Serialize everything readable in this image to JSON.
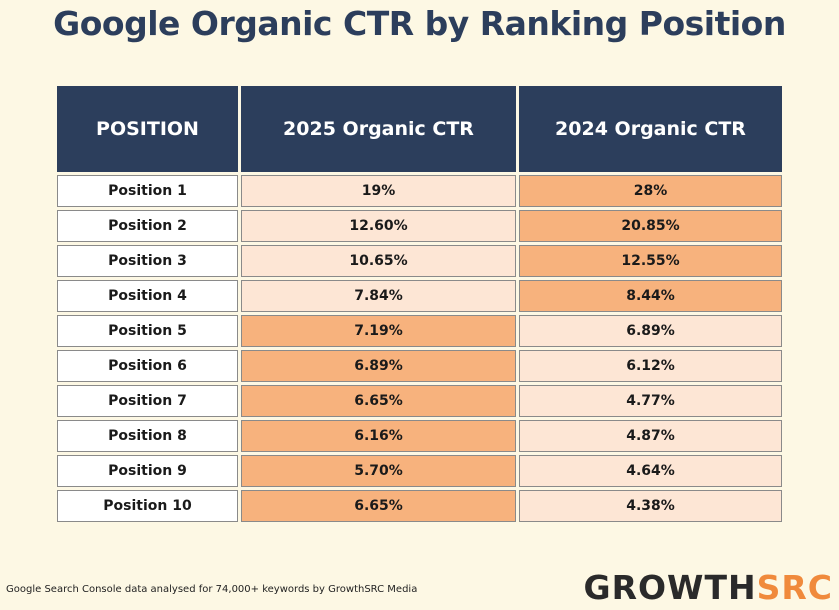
{
  "chart_data": {
    "type": "table",
    "title": "Google Organic CTR by Ranking Position",
    "columns": [
      "POSITION",
      "2025 Organic CTR",
      "2024 Organic CTR"
    ],
    "rows": [
      [
        "Position 1",
        "19%",
        "28%"
      ],
      [
        "Position 2",
        "12.60%",
        "20.85%"
      ],
      [
        "Position 3",
        "10.65%",
        "12.55%"
      ],
      [
        "Position 4",
        "7.84%",
        "8.44%"
      ],
      [
        "Position 5",
        "7.19%",
        "6.89%"
      ],
      [
        "Position 6",
        "6.89%",
        "6.12%"
      ],
      [
        "Position 7",
        "6.65%",
        "4.77%"
      ],
      [
        "Position 8",
        "6.16%",
        "4.87%"
      ],
      [
        "Position 9",
        "5.70%",
        "4.64%"
      ],
      [
        "Position 10",
        "6.65%",
        "4.38%"
      ]
    ],
    "highlight": [
      [
        false,
        false,
        true
      ],
      [
        false,
        false,
        true
      ],
      [
        false,
        false,
        true
      ],
      [
        false,
        false,
        true
      ],
      [
        false,
        true,
        false
      ],
      [
        false,
        true,
        false
      ],
      [
        false,
        true,
        false
      ],
      [
        false,
        true,
        false
      ],
      [
        false,
        true,
        false
      ],
      [
        false,
        true,
        false
      ]
    ]
  },
  "colors": {
    "background": "#fdf8e4",
    "header": "#2c3e5c",
    "label_cell": "#ffffff",
    "highlight_cell": "#f7b27d",
    "light_cell": "#fde6d5",
    "logo_accent": "#f08a3c"
  },
  "footer": {
    "note": "Google Search Console data analysed for 74,000+ keywords by GrowthSRC Media"
  },
  "logo": {
    "part1": "GROWTH",
    "part2": "SRC"
  }
}
